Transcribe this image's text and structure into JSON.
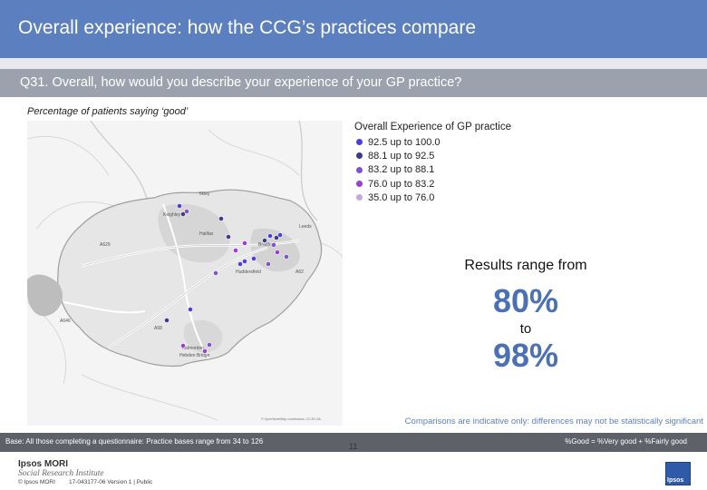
{
  "header": {
    "title": "Overall experience: how the CCG’s practices compare",
    "question": "Q31. Overall, how would you describe your experience of your GP practice?"
  },
  "subtitle": "Percentage of patients saying ‘good’",
  "legend": {
    "title": "Overall Experience of GP practice",
    "items": [
      {
        "label": "92.5 up to 100.0",
        "color": "#4c3de0"
      },
      {
        "label": "88.1 up to   92.5",
        "color": "#3d3a8a"
      },
      {
        "label": "83.2 up to   88.1",
        "color": "#7d54c8"
      },
      {
        "label": "76.0 up to   83.2",
        "color": "#9a3fd0"
      },
      {
        "label": "35.0 up to   76.0",
        "color": "#c7a8dd"
      }
    ]
  },
  "map": {
    "place_labels": [
      "Keighley",
      "Ilkley",
      "Bradford",
      "Halifax",
      "Huddersfield",
      "Todmorden",
      "Hebden Bridge",
      "Leeds"
    ],
    "road_labels": [
      "A629",
      "A58",
      "A646",
      "A62"
    ],
    "copyright": "© OpenStreetMap contributors, CC-BY-SA"
  },
  "results": {
    "intro": "Results range from",
    "low": "80%",
    "connector": "to",
    "high": "98%"
  },
  "comparisons_note": "Comparisons are indicative only: differences may not be statistically significant",
  "base_text": "Base: All those completing a questionnaire: Practice bases range from 34 to 126",
  "good_definition": "%Good = %Very good + %Fairly good",
  "footer": {
    "brand_name": "Ipsos MORI",
    "brand_sub": "Social Research Institute",
    "copyright": "© Ipsos MORI",
    "job_number": "17-043177-06 Version 1 | Public",
    "page_number": "11",
    "logo_text": "Ipsos"
  }
}
